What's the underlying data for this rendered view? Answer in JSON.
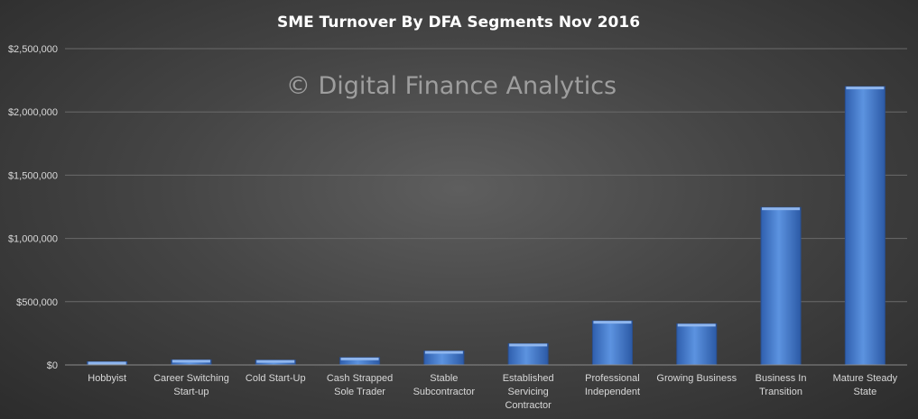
{
  "chart_data": {
    "type": "bar",
    "title": "SME Turnover  By DFA Segments  Nov 2016",
    "watermark": "© Digital Finance Analytics",
    "categories": [
      "Hobbyist",
      "Career Switching Start-up",
      "Cold Start-Up",
      "Cash Strapped Sole Trader",
      "Stable Subcontractor",
      "Established Servicing Contractor",
      "Professional Independent",
      "Growing Business",
      "Business In Transition",
      "Mature Steady State"
    ],
    "category_lines": [
      [
        "Hobbyist"
      ],
      [
        "Career Switching",
        "Start-up"
      ],
      [
        "Cold Start-Up"
      ],
      [
        "Cash Strapped",
        "Sole Trader"
      ],
      [
        "Stable",
        "Subcontractor"
      ],
      [
        "Established",
        "Servicing",
        "Contractor"
      ],
      [
        "Professional",
        "Independent"
      ],
      [
        "Growing Business"
      ],
      [
        "Business In",
        "Transition"
      ],
      [
        "Mature Steady",
        "State"
      ]
    ],
    "values": [
      25000,
      40000,
      38000,
      58000,
      110000,
      168000,
      348000,
      325000,
      1245000,
      2200000
    ],
    "ylim": [
      0,
      2500000
    ],
    "yticks": [
      0,
      500000,
      1000000,
      1500000,
      2000000,
      2500000
    ],
    "ytick_labels": [
      "$0",
      "$500,000",
      "$1,000,000",
      "$1,500,000",
      "$2,000,000",
      "$2,500,000"
    ],
    "xlabel": "",
    "ylabel": "",
    "grid": true,
    "legend": "none",
    "bar_color": "#4a7fd0"
  }
}
